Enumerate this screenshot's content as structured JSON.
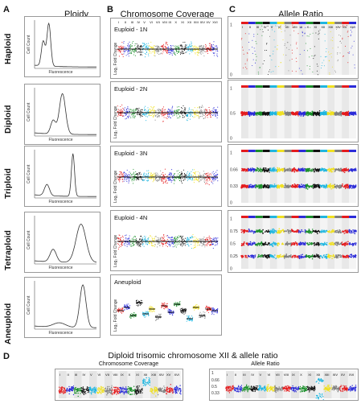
{
  "figure": {
    "letter_a": "A",
    "letter_b": "B",
    "letter_c": "C",
    "letter_d": "D",
    "title_a": "Ploidy",
    "title_b": "Chromosome Coverage",
    "title_c": "Allele Ratio",
    "title_d": "Diploid trisomic chromosome XII & allele ratio",
    "d_cov_title": "Chromosome Coverage",
    "d_ar_title": "Allele Ratio"
  },
  "ploidy": {
    "labels": [
      "Haploid",
      "Diploid",
      "Triploid",
      "Tetraploid",
      "Aneuploid"
    ],
    "y_axis": "Cell Count",
    "x_axis": "Fluorescence"
  },
  "coverage": {
    "panel_titles": [
      "Euploid - 1N",
      "Euploid - 2N",
      "Euploid - 3N",
      "Euploid - 4N",
      "Aneuploid"
    ],
    "y_axis": "Log₂ Fold Change",
    "chromosomes": [
      "I",
      "II",
      "III",
      "IV",
      "V",
      "VI",
      "VII",
      "VIII",
      "IX",
      "X",
      "XI",
      "XII",
      "XIII",
      "XIV",
      "XV",
      "XVI"
    ]
  },
  "allele": {
    "ticks_1n": [
      "1",
      "0"
    ],
    "ticks_2n": [
      "1",
      "0.5",
      "0"
    ],
    "ticks_3n": [
      "1",
      "0.66",
      "0.33",
      "0"
    ],
    "ticks_4n": [
      "1",
      "0.75",
      "0.5",
      "0.25",
      "0"
    ]
  },
  "panel_d": {
    "ticks": [
      "1",
      "0.66",
      "0.5",
      "0.33",
      "0"
    ]
  },
  "colors": {
    "chr": [
      "#e41a1c",
      "#2b2bd8",
      "#1a8f2a",
      "#111111",
      "#1fb6e0",
      "#f0e020",
      "#808080",
      "#e41a1c",
      "#2b2bd8",
      "#1a8f2a",
      "#111111",
      "#1fb6e0",
      "#f0e020",
      "#808080",
      "#e41a1c",
      "#2b2bd8"
    ]
  }
}
